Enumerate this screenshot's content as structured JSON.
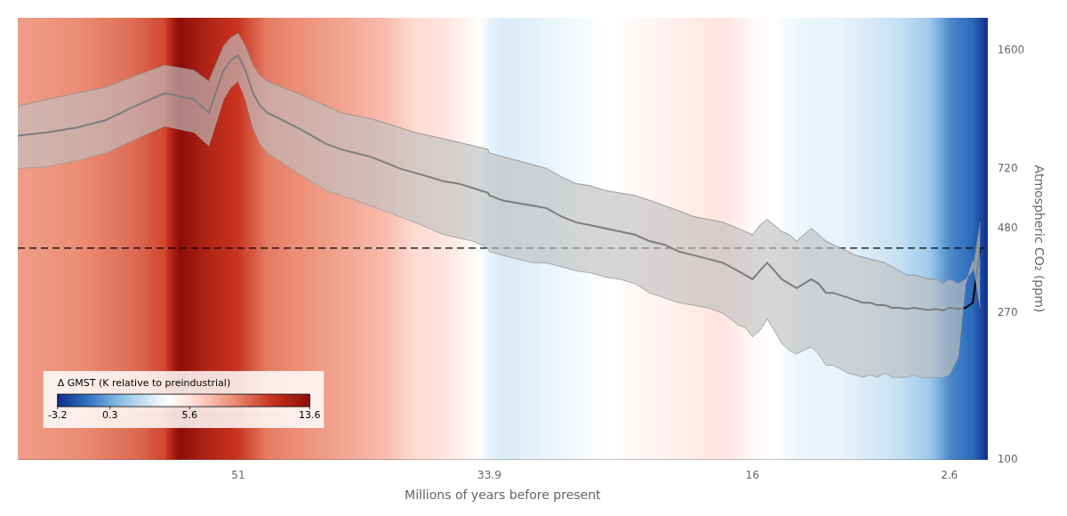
{
  "chart_data": {
    "type": "line",
    "xlabel": "Millions of years before present",
    "ylabel": "Atmospheric CO₂ (ppm)",
    "x": [
      66,
      64,
      62,
      60,
      58,
      56,
      54,
      53,
      52,
      51.5,
      51,
      50.5,
      50,
      49.5,
      49,
      48,
      47,
      46,
      45,
      44,
      43,
      42,
      41,
      40,
      39,
      38,
      37,
      36,
      35,
      34,
      33.9,
      33,
      32,
      31,
      30,
      29,
      28,
      27,
      26,
      25,
      24,
      23,
      22,
      21,
      20,
      19,
      18,
      17,
      16.5,
      16,
      15.5,
      15,
      14.5,
      14,
      13.5,
      13,
      12.5,
      12,
      11.5,
      11,
      10.5,
      10,
      9.5,
      9,
      8.5,
      8,
      7.5,
      7,
      6.5,
      6,
      5.5,
      5,
      4.5,
      4,
      3.5,
      3,
      2.6,
      2,
      1.5,
      1,
      0.5
    ],
    "series": [
      {
        "color": "#909090",
        "values": [
          1100,
          1150,
          1200,
          1250,
          1350,
          1450,
          1400,
          1300,
          1650,
          1750,
          1800,
          1650,
          1450,
          1350,
          1300,
          1250,
          1200,
          1150,
          1100,
          1050,
          1030,
          1010,
          980,
          950,
          920,
          900,
          880,
          860,
          840,
          820,
          800,
          780,
          760,
          740,
          720,
          680,
          650,
          640,
          620,
          610,
          600,
          580,
          560,
          540,
          520,
          510,
          500,
          480,
          470,
          460,
          490,
          510,
          490,
          470,
          460,
          440,
          460,
          480,
          460,
          440,
          430,
          420,
          410,
          400,
          395,
          390,
          385,
          380,
          370,
          360,
          350,
          350,
          345,
          340,
          340,
          330,
          340,
          330,
          340,
          360,
          500
        ]
      },
      {
        "color": "#909090",
        "values": [
          720,
          730,
          760,
          800,
          880,
          960,
          920,
          840,
          1150,
          1250,
          1300,
          1150,
          950,
          850,
          800,
          750,
          700,
          660,
          620,
          600,
          580,
          560,
          540,
          520,
          500,
          480,
          460,
          450,
          440,
          420,
          410,
          400,
          390,
          380,
          380,
          370,
          360,
          355,
          345,
          340,
          330,
          310,
          300,
          290,
          285,
          280,
          270,
          250,
          245,
          230,
          240,
          260,
          240,
          220,
          210,
          205,
          210,
          215,
          205,
          190,
          190,
          185,
          180,
          178,
          175,
          178,
          175,
          180,
          175,
          175,
          175,
          178,
          175,
          175,
          175,
          175,
          178,
          200,
          330,
          385,
          280
        ]
      },
      {
        "color": "#000000",
        "values": [
          900,
          920,
          950,
          1000,
          1100,
          1200,
          1150,
          1050,
          1400,
          1500,
          1550,
          1400,
          1200,
          1100,
          1050,
          1000,
          950,
          900,
          850,
          820,
          800,
          780,
          750,
          720,
          700,
          680,
          660,
          650,
          630,
          610,
          600,
          580,
          570,
          560,
          550,
          520,
          500,
          490,
          480,
          470,
          460,
          440,
          430,
          410,
          400,
          390,
          380,
          360,
          350,
          340,
          360,
          380,
          360,
          340,
          330,
          320,
          330,
          340,
          330,
          310,
          310,
          305,
          300,
          295,
          290,
          290,
          285,
          285,
          280,
          280,
          278,
          280,
          278,
          276,
          278,
          275,
          280,
          278,
          280,
          290,
          420
        ]
      }
    ],
    "band_color": "#c0c0c0",
    "reference_line": {
      "y": 420,
      "color": "#000000",
      "line_style": "dashed"
    },
    "xlim": [
      66,
      0
    ],
    "xticks": [
      51,
      33.9,
      16,
      2.6
    ],
    "ylim": [
      100,
      2000
    ],
    "yticks": [
      100,
      270,
      480,
      720,
      1600
    ],
    "log": "y",
    "grid": false,
    "background": {
      "x": [
        66,
        62,
        58,
        56,
        55,
        53,
        51,
        49,
        47,
        45,
        43,
        41,
        39,
        37,
        35,
        33.9,
        33,
        30,
        27,
        24,
        21,
        18,
        16,
        14,
        12,
        10,
        8,
        6,
        4,
        2.6,
        1,
        0
      ],
      "values": [
        8,
        8.5,
        9.5,
        10.5,
        13.6,
        12,
        11,
        9,
        8.5,
        8,
        7.5,
        7,
        6,
        5.5,
        4.5,
        3.5,
        3,
        3.5,
        4,
        4.5,
        5,
        5.5,
        4.5,
        4,
        3.5,
        3.5,
        3,
        2.5,
        1.5,
        -0.5,
        -1.5,
        -3.2
      ]
    },
    "colorbar": {
      "label": "Δ GMST (K relative to preindustrial)",
      "range": [
        -3.2,
        13.6
      ],
      "ticks": [
        -3.2,
        0.3,
        5.6,
        13.6
      ],
      "colors": [
        "#0d2e8c",
        "#3373bf",
        "#8cbfe6",
        "#d9ebf7",
        "#ffffff",
        "#ffd9d1",
        "#eb8c73",
        "#c7331f",
        "#8c0d08"
      ],
      "positions": [
        0.0,
        0.12,
        0.25,
        0.37,
        0.44,
        0.55,
        0.7,
        0.85,
        1.0
      ]
    }
  }
}
